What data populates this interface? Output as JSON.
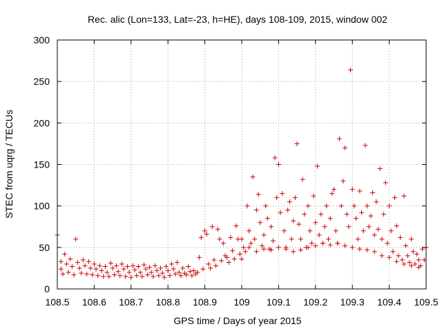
{
  "chart_data": {
    "type": "scatter",
    "title": "Rec. alic (Lon=133, Lat=-23, h=HE), days 108-109, 2015, window 002",
    "xlabel": "GPS time / Days of year 2015",
    "ylabel": "STEC from uqrg / TECUs",
    "xlim": [
      108.5,
      109.5
    ],
    "ylim": [
      0,
      300
    ],
    "x_ticks": [
      108.5,
      108.6,
      108.7,
      108.8,
      108.9,
      109.0,
      109.1,
      109.2,
      109.3,
      109.4,
      109.5
    ],
    "x_tick_labels": [
      "108.5",
      "108.6",
      "108.7",
      "108.8",
      "108.9",
      "109",
      "109.1",
      "109.2",
      "109.3",
      "109.4",
      "109.5"
    ],
    "y_ticks": [
      0,
      50,
      100,
      150,
      200,
      250,
      300
    ],
    "y_tick_labels": [
      "0",
      "50",
      "100",
      "150",
      "200",
      "250",
      "300"
    ],
    "grid": true,
    "marker": "plus",
    "color": "#cc0000",
    "series": [
      {
        "name": "STEC",
        "points": [
          [
            108.5,
            65
          ],
          [
            108.51,
            33
          ],
          [
            108.51,
            24
          ],
          [
            108.515,
            18
          ],
          [
            108.52,
            42
          ],
          [
            108.525,
            30
          ],
          [
            108.53,
            20
          ],
          [
            108.535,
            36
          ],
          [
            108.54,
            27
          ],
          [
            108.545,
            17
          ],
          [
            108.55,
            60
          ],
          [
            108.555,
            32
          ],
          [
            108.56,
            25
          ],
          [
            108.565,
            19
          ],
          [
            108.57,
            35
          ],
          [
            108.575,
            28
          ],
          [
            108.58,
            18
          ],
          [
            108.585,
            33
          ],
          [
            108.59,
            25
          ],
          [
            108.595,
            17
          ],
          [
            108.6,
            30
          ],
          [
            108.605,
            24
          ],
          [
            108.61,
            16
          ],
          [
            108.615,
            28
          ],
          [
            108.62,
            22
          ],
          [
            108.625,
            15
          ],
          [
            108.63,
            27
          ],
          [
            108.635,
            20
          ],
          [
            108.64,
            15
          ],
          [
            108.645,
            31
          ],
          [
            108.65,
            25
          ],
          [
            108.655,
            17
          ],
          [
            108.66,
            28
          ],
          [
            108.665,
            21
          ],
          [
            108.67,
            16
          ],
          [
            108.675,
            30
          ],
          [
            108.68,
            24
          ],
          [
            108.685,
            15
          ],
          [
            108.69,
            27
          ],
          [
            108.695,
            20
          ],
          [
            108.7,
            14
          ],
          [
            108.705,
            28
          ],
          [
            108.71,
            23
          ],
          [
            108.715,
            16
          ],
          [
            108.72,
            27
          ],
          [
            108.725,
            20
          ],
          [
            108.73,
            15
          ],
          [
            108.735,
            29
          ],
          [
            108.74,
            24
          ],
          [
            108.745,
            17
          ],
          [
            108.75,
            26
          ],
          [
            108.755,
            20
          ],
          [
            108.76,
            15
          ],
          [
            108.765,
            28
          ],
          [
            108.77,
            22
          ],
          [
            108.775,
            16
          ],
          [
            108.78,
            25
          ],
          [
            108.785,
            19
          ],
          [
            108.79,
            14
          ],
          [
            108.795,
            27
          ],
          [
            108.8,
            22
          ],
          [
            108.805,
            16
          ],
          [
            108.81,
            30
          ],
          [
            108.815,
            24
          ],
          [
            108.82,
            18
          ],
          [
            108.825,
            32
          ],
          [
            108.83,
            20
          ],
          [
            108.835,
            16
          ],
          [
            108.84,
            25
          ],
          [
            108.845,
            19
          ],
          [
            108.85,
            17
          ],
          [
            108.855,
            27
          ],
          [
            108.86,
            21
          ],
          [
            108.865,
            16
          ],
          [
            108.87,
            22
          ],
          [
            108.875,
            18
          ],
          [
            108.88,
            20
          ],
          [
            108.885,
            38
          ],
          [
            108.89,
            62
          ],
          [
            108.895,
            24
          ],
          [
            108.9,
            70
          ],
          [
            108.905,
            66
          ],
          [
            108.91,
            30
          ],
          [
            108.915,
            25
          ],
          [
            108.92,
            75
          ],
          [
            108.925,
            35
          ],
          [
            108.93,
            28
          ],
          [
            108.935,
            72
          ],
          [
            108.94,
            60
          ],
          [
            108.945,
            34
          ],
          [
            108.95,
            55
          ],
          [
            108.955,
            40
          ],
          [
            108.96,
            38
          ],
          [
            108.965,
            32
          ],
          [
            108.97,
            62
          ],
          [
            108.975,
            46
          ],
          [
            108.98,
            36
          ],
          [
            108.985,
            76
          ],
          [
            108.99,
            60
          ],
          [
            108.995,
            42
          ],
          [
            109.0,
            36
          ],
          [
            109.005,
            50
          ],
          [
            109.01,
            45
          ],
          [
            109.015,
            100
          ],
          [
            109.02,
            70
          ],
          [
            109.025,
            55
          ],
          [
            109.03,
            135
          ],
          [
            109.035,
            60
          ],
          [
            109.04,
            95
          ],
          [
            109.045,
            114
          ],
          [
            109.05,
            80
          ],
          [
            109.055,
            52
          ],
          [
            109.06,
            65
          ],
          [
            109.065,
            100
          ],
          [
            109.07,
            85
          ],
          [
            109.075,
            48
          ],
          [
            109.08,
            75
          ],
          [
            109.085,
            58
          ],
          [
            109.09,
            158
          ],
          [
            109.095,
            110
          ],
          [
            109.1,
            150
          ],
          [
            109.105,
            92
          ],
          [
            109.11,
            115
          ],
          [
            109.115,
            70
          ],
          [
            109.12,
            50
          ],
          [
            109.125,
            95
          ],
          [
            109.13,
            105
          ],
          [
            109.135,
            60
          ],
          [
            109.14,
            82
          ],
          [
            109.145,
            110
          ],
          [
            109.15,
            175
          ],
          [
            109.155,
            78
          ],
          [
            109.16,
            60
          ],
          [
            109.165,
            132
          ],
          [
            109.17,
            90
          ],
          [
            109.175,
            50
          ],
          [
            109.18,
            100
          ],
          [
            109.185,
            70
          ],
          [
            109.19,
            55
          ],
          [
            109.195,
            112
          ],
          [
            109.2,
            80
          ],
          [
            109.205,
            148
          ],
          [
            109.21,
            65
          ],
          [
            109.215,
            90
          ],
          [
            109.22,
            55
          ],
          [
            109.225,
            75
          ],
          [
            109.23,
            100
          ],
          [
            109.235,
            60
          ],
          [
            109.24,
            85
          ],
          [
            109.245,
            115
          ],
          [
            109.25,
            120
          ],
          [
            109.255,
            70
          ],
          [
            109.26,
            55
          ],
          [
            109.265,
            181
          ],
          [
            109.27,
            100
          ],
          [
            109.275,
            130
          ],
          [
            109.28,
            170
          ],
          [
            109.285,
            90
          ],
          [
            109.29,
            75
          ],
          [
            109.295,
            264
          ],
          [
            109.3,
            120
          ],
          [
            109.305,
            100
          ],
          [
            109.31,
            85
          ],
          [
            109.315,
            60
          ],
          [
            109.32,
            118
          ],
          [
            109.325,
            92
          ],
          [
            109.33,
            70
          ],
          [
            109.335,
            173
          ],
          [
            109.34,
            100
          ],
          [
            109.345,
            75
          ],
          [
            109.35,
            88
          ],
          [
            109.355,
            116
          ],
          [
            109.36,
            65
          ],
          [
            109.365,
            105
          ],
          [
            109.37,
            72
          ],
          [
            109.375,
            145
          ],
          [
            109.38,
            60
          ],
          [
            109.385,
            90
          ],
          [
            109.39,
            128
          ],
          [
            109.395,
            55
          ],
          [
            109.4,
            100
          ],
          [
            109.405,
            70
          ],
          [
            109.41,
            45
          ],
          [
            109.415,
            110
          ],
          [
            109.42,
            76
          ],
          [
            109.425,
            40
          ],
          [
            109.43,
            62
          ],
          [
            109.435,
            35
          ],
          [
            109.44,
            112
          ],
          [
            109.445,
            52
          ],
          [
            109.45,
            40
          ],
          [
            109.455,
            32
          ],
          [
            109.46,
            60
          ],
          [
            109.465,
            45
          ],
          [
            109.47,
            30
          ],
          [
            109.475,
            42
          ],
          [
            109.48,
            35
          ],
          [
            109.485,
            28
          ],
          [
            109.49,
            48
          ],
          [
            109.495,
            35
          ],
          [
            109.0,
            60
          ],
          [
            109.02,
            50
          ],
          [
            109.04,
            45
          ],
          [
            109.06,
            48
          ],
          [
            109.08,
            47
          ],
          [
            109.1,
            50
          ],
          [
            109.12,
            48
          ],
          [
            109.14,
            45
          ],
          [
            109.16,
            47
          ],
          [
            109.18,
            50
          ],
          [
            109.2,
            52
          ],
          [
            109.22,
            55
          ],
          [
            109.24,
            53
          ],
          [
            109.26,
            55
          ],
          [
            109.28,
            52
          ],
          [
            109.3,
            50
          ],
          [
            109.32,
            48
          ],
          [
            109.34,
            47
          ],
          [
            109.36,
            45
          ],
          [
            109.38,
            40
          ],
          [
            109.4,
            38
          ],
          [
            109.42,
            33
          ],
          [
            109.44,
            30
          ],
          [
            109.46,
            28
          ],
          [
            109.48,
            26
          ],
          [
            109.5,
            50
          ]
        ]
      }
    ]
  }
}
